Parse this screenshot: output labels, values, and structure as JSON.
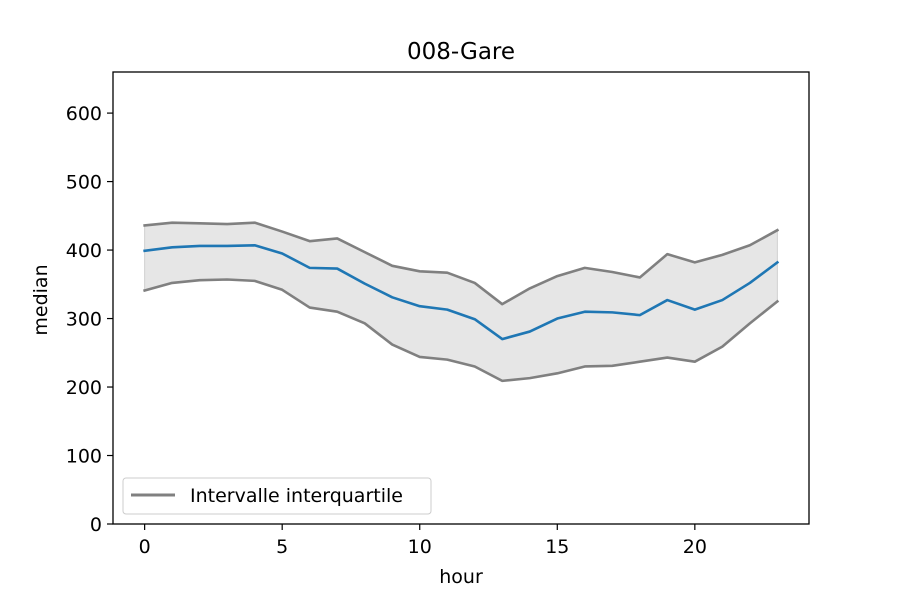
{
  "chart_data": {
    "type": "line",
    "title": "008-Gare",
    "xlabel": "hour",
    "ylabel": "median",
    "xlim": [
      -1.15,
      24.15
    ],
    "ylim": [
      0,
      660
    ],
    "xticks": [
      0,
      5,
      10,
      15,
      20
    ],
    "yticks": [
      0,
      100,
      200,
      300,
      400,
      500,
      600
    ],
    "grid": false,
    "legend": {
      "placement": "lower-left",
      "entries": [
        "Intervalle interquartile"
      ]
    },
    "x": [
      0,
      1,
      2,
      3,
      4,
      5,
      6,
      7,
      8,
      9,
      10,
      11,
      12,
      13,
      14,
      15,
      16,
      17,
      18,
      19,
      20,
      21,
      22,
      23
    ],
    "series": [
      {
        "role": "median",
        "color": "#1f77b4",
        "values": [
          399,
          404,
          406,
          406,
          407,
          395,
          374,
          373,
          351,
          331,
          318,
          313,
          299,
          270,
          281,
          300,
          310,
          309,
          305,
          327,
          313,
          327,
          352,
          382
        ]
      },
      {
        "role": "upper-quartile",
        "name": "Intervalle interquartile",
        "color": "#808080",
        "values": [
          436,
          440,
          439,
          438,
          440,
          427,
          413,
          417,
          397,
          377,
          369,
          367,
          352,
          321,
          344,
          362,
          374,
          368,
          360,
          394,
          382,
          393,
          407,
          429
        ]
      },
      {
        "role": "lower-quartile",
        "color": "#808080",
        "values": [
          341,
          352,
          356,
          357,
          355,
          342,
          316,
          310,
          293,
          262,
          244,
          240,
          230,
          209,
          213,
          220,
          230,
          231,
          237,
          243,
          237,
          259,
          293,
          325
        ]
      }
    ],
    "band_fill": "#e6e6e6"
  }
}
